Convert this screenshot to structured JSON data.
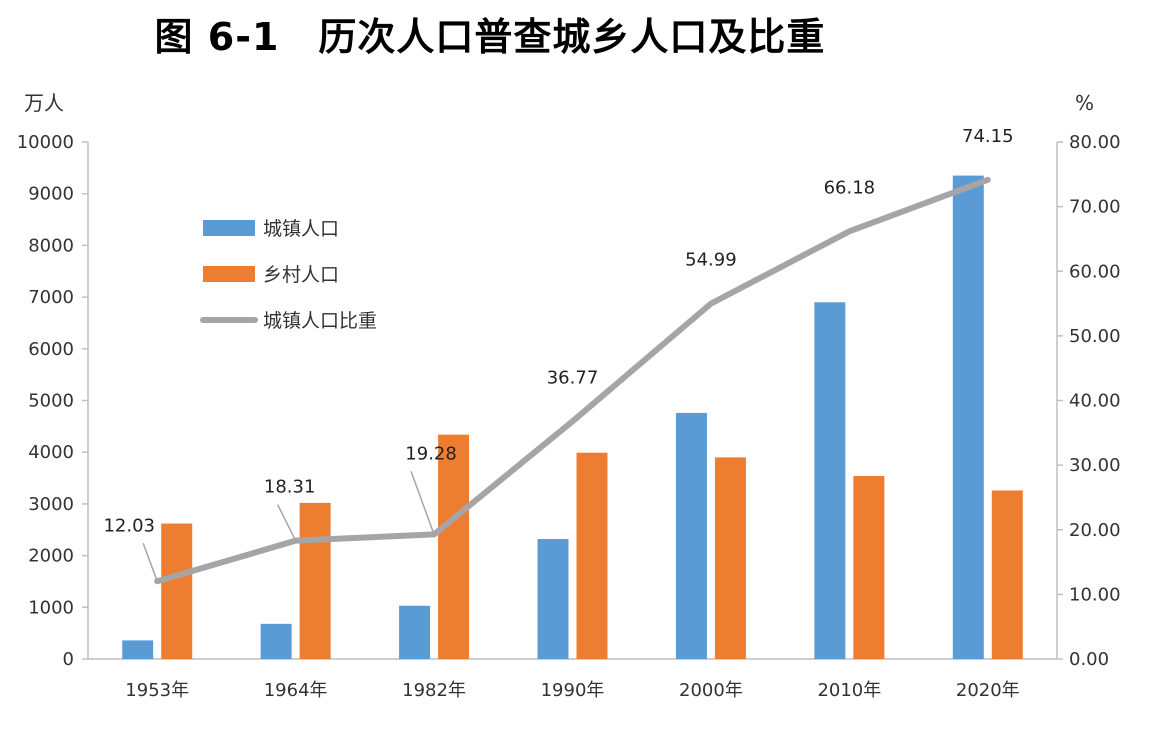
{
  "chart_data": {
    "type": "bar",
    "title": "图 6-1　历次人口普查城乡人口及比重",
    "categories": [
      "1953年",
      "1964年",
      "1982年",
      "1990年",
      "2000年",
      "2010年",
      "2020年"
    ],
    "series": [
      {
        "name": "城镇人口",
        "kind": "bar",
        "axis": "left",
        "color": "#5B9BD5",
        "values": [
          360,
          680,
          1030,
          2320,
          4760,
          6900,
          9350
        ]
      },
      {
        "name": "乡村人口",
        "kind": "bar",
        "axis": "left",
        "color": "#ED7D31",
        "values": [
          2620,
          3020,
          4340,
          3990,
          3900,
          3540,
          3260
        ]
      },
      {
        "name": "城镇人口比重",
        "kind": "line",
        "axis": "right",
        "color": "#A5A5A5",
        "values": [
          12.03,
          18.31,
          19.28,
          36.77,
          54.99,
          66.18,
          74.15
        ],
        "labels": [
          "12.03",
          "18.31",
          "19.28",
          "36.77",
          "54.99",
          "66.18",
          "74.15"
        ]
      }
    ],
    "ylabel_left": "万人",
    "ylabel_right": "%",
    "ylim_left": [
      0,
      10000
    ],
    "ylim_right": [
      0,
      80
    ],
    "yticks_left": [
      "0",
      "1000",
      "2000",
      "3000",
      "4000",
      "5000",
      "6000",
      "7000",
      "8000",
      "9000",
      "10000"
    ],
    "yticks_right": [
      "0.00",
      "10.00",
      "20.00",
      "30.00",
      "40.00",
      "50.00",
      "60.00",
      "70.00",
      "80.00"
    ],
    "legend_position": "upper-left",
    "grid": false
  }
}
